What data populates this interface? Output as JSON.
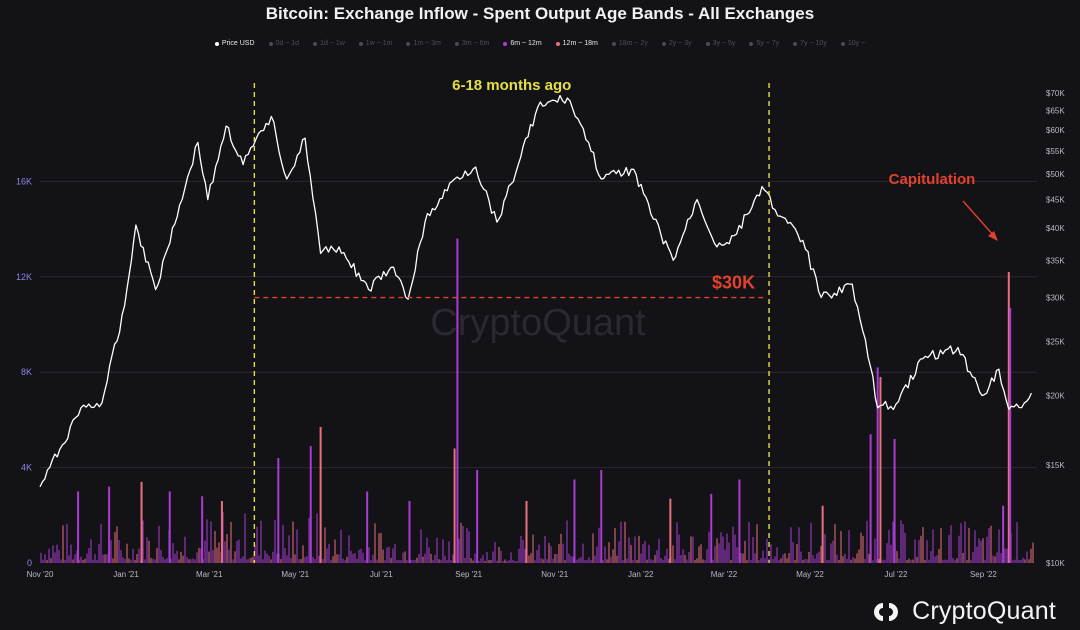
{
  "chart_data": {
    "type": "bar",
    "title": "Bitcoin: Exchange Inflow - Spent Output Age Bands - All Exchanges",
    "legend": [
      {
        "label": "Price USD",
        "color": "#ffffff",
        "active": true
      },
      {
        "label": "0d ~ 1d",
        "color": "#4a4a52",
        "active": false
      },
      {
        "label": "1d ~ 1w",
        "color": "#4a4a52",
        "active": false
      },
      {
        "label": "1w ~ 1m",
        "color": "#4a4a52",
        "active": false
      },
      {
        "label": "1m ~ 3m",
        "color": "#4a4a52",
        "active": false
      },
      {
        "label": "3m ~ 6m",
        "color": "#4a4a52",
        "active": false
      },
      {
        "label": "6m ~ 12m",
        "color": "#a83dd4",
        "active": true
      },
      {
        "label": "12m ~ 18m",
        "color": "#e8707c",
        "active": true
      },
      {
        "label": "18m ~ 2y",
        "color": "#4a4a52",
        "active": false
      },
      {
        "label": "2y ~ 3y",
        "color": "#4a4a52",
        "active": false
      },
      {
        "label": "3y ~ 5y",
        "color": "#4a4a52",
        "active": false
      },
      {
        "label": "5y ~ 7y",
        "color": "#4a4a52",
        "active": false
      },
      {
        "label": "7y ~ 10y",
        "color": "#4a4a52",
        "active": false
      },
      {
        "label": "10y ~",
        "color": "#4a4a52",
        "active": false
      }
    ],
    "x_tick_labels": [
      "Nov '20",
      "Jan '21",
      "Mar '21",
      "May '21",
      "Jul '21",
      "Sep '21",
      "Nov '21",
      "Jan '22",
      "Mar '22",
      "May '22",
      "Jul '22",
      "Sep '22"
    ],
    "left_axis": {
      "ticks": [
        0,
        4000,
        8000,
        12000,
        16000
      ],
      "labels": [
        "0",
        "4K",
        "8K",
        "12K",
        "16K"
      ],
      "ylim": [
        0,
        20000
      ]
    },
    "right_axis": {
      "scale": "log",
      "ticks": [
        10000,
        15000,
        20000,
        25000,
        30000,
        35000,
        40000,
        45000,
        50000,
        55000,
        60000,
        65000,
        70000
      ],
      "labels": [
        "$10K",
        "$15K",
        "$20K",
        "$25K",
        "$30K",
        "$35K",
        "$40K",
        "$45K",
        "$50K",
        "$55K",
        "$60K",
        "$65K",
        "$70K"
      ],
      "ylim": [
        10000,
        72000
      ]
    },
    "price_series": {
      "name": "Price USD",
      "color": "#ffffff",
      "points": [
        [
          "2020-11-01",
          13700
        ],
        [
          "2020-11-15",
          16000
        ],
        [
          "2020-11-30",
          19000
        ],
        [
          "2020-12-15",
          19400
        ],
        [
          "2020-12-31",
          29000
        ],
        [
          "2021-01-08",
          40500
        ],
        [
          "2021-01-22",
          31000
        ],
        [
          "2021-02-08",
          44000
        ],
        [
          "2021-02-21",
          57000
        ],
        [
          "2021-02-28",
          45000
        ],
        [
          "2021-03-13",
          61000
        ],
        [
          "2021-03-25",
          52000
        ],
        [
          "2021-04-14",
          63500
        ],
        [
          "2021-04-25",
          49000
        ],
        [
          "2021-05-08",
          58000
        ],
        [
          "2021-05-19",
          36000
        ],
        [
          "2021-06-01",
          37000
        ],
        [
          "2021-06-22",
          31000
        ],
        [
          "2021-07-08",
          34000
        ],
        [
          "2021-07-20",
          29800
        ],
        [
          "2021-08-01",
          41000
        ],
        [
          "2021-08-22",
          49000
        ],
        [
          "2021-09-06",
          51500
        ],
        [
          "2021-09-21",
          41000
        ],
        [
          "2021-10-01",
          48000
        ],
        [
          "2021-10-20",
          66000
        ],
        [
          "2021-11-10",
          68500
        ],
        [
          "2021-11-25",
          57000
        ],
        [
          "2021-12-04",
          49000
        ],
        [
          "2021-12-27",
          51000
        ],
        [
          "2022-01-10",
          41500
        ],
        [
          "2022-01-24",
          35000
        ],
        [
          "2022-02-10",
          45000
        ],
        [
          "2022-02-24",
          37000
        ],
        [
          "2022-03-10",
          39000
        ],
        [
          "2022-03-28",
          47500
        ],
        [
          "2022-04-10",
          42000
        ],
        [
          "2022-04-26",
          38000
        ],
        [
          "2022-05-09",
          30000
        ],
        [
          "2022-05-31",
          31700
        ],
        [
          "2022-06-13",
          22500
        ],
        [
          "2022-06-18",
          19000
        ],
        [
          "2022-07-01",
          19300
        ],
        [
          "2022-07-20",
          23300
        ],
        [
          "2022-08-14",
          24400
        ],
        [
          "2022-08-31",
          20000
        ],
        [
          "2022-09-12",
          22300
        ],
        [
          "2022-09-19",
          18900
        ],
        [
          "2022-09-30",
          19400
        ],
        [
          "2022-10-05",
          20200
        ]
      ]
    },
    "inflow_series": [
      {
        "name": "6m ~ 12m",
        "color": "#a83dd4"
      },
      {
        "name": "12m ~ 18m",
        "color": "#e8707c"
      }
    ],
    "inflow_spikes": [
      [
        "2020-11-28",
        3000
      ],
      [
        "2020-12-20",
        3200
      ],
      [
        "2021-01-12",
        3400
      ],
      [
        "2021-02-01",
        3000
      ],
      [
        "2021-02-24",
        2800
      ],
      [
        "2021-03-10",
        2600
      ],
      [
        "2021-04-19",
        4400
      ],
      [
        "2021-05-12",
        4900
      ],
      [
        "2021-05-19",
        5700
      ],
      [
        "2021-06-21",
        3000
      ],
      [
        "2021-07-21",
        2600
      ],
      [
        "2021-08-22",
        4800
      ],
      [
        "2021-08-24",
        13600
      ],
      [
        "2021-09-07",
        3900
      ],
      [
        "2021-10-12",
        2600
      ],
      [
        "2021-11-15",
        3500
      ],
      [
        "2021-12-04",
        3900
      ],
      [
        "2022-01-22",
        2700
      ],
      [
        "2022-02-20",
        2900
      ],
      [
        "2022-03-12",
        3500
      ],
      [
        "2022-05-10",
        2400
      ],
      [
        "2022-06-13",
        5400
      ],
      [
        "2022-06-18",
        8200
      ],
      [
        "2022-06-20",
        7800
      ],
      [
        "2022-06-30",
        5200
      ],
      [
        "2022-09-15",
        2400
      ],
      [
        "2022-09-19",
        12200
      ],
      [
        "2022-09-20",
        10700
      ]
    ],
    "annotations": {
      "window_label": "6-18 months ago",
      "window_start": "2021-04-02",
      "window_end": "2022-04-02",
      "level_label": "$30K",
      "level_value": 30000,
      "capitulation_label": "Capitulation"
    }
  },
  "brand": {
    "name": "CryptoQuant",
    "watermark": "CryptoQuant"
  },
  "colors": {
    "background": "#131216",
    "grid": "#2a2a30",
    "yellow": "#e4e044",
    "red": "#e2412c",
    "purple": "#a83dd4",
    "pink": "#e8707c"
  }
}
